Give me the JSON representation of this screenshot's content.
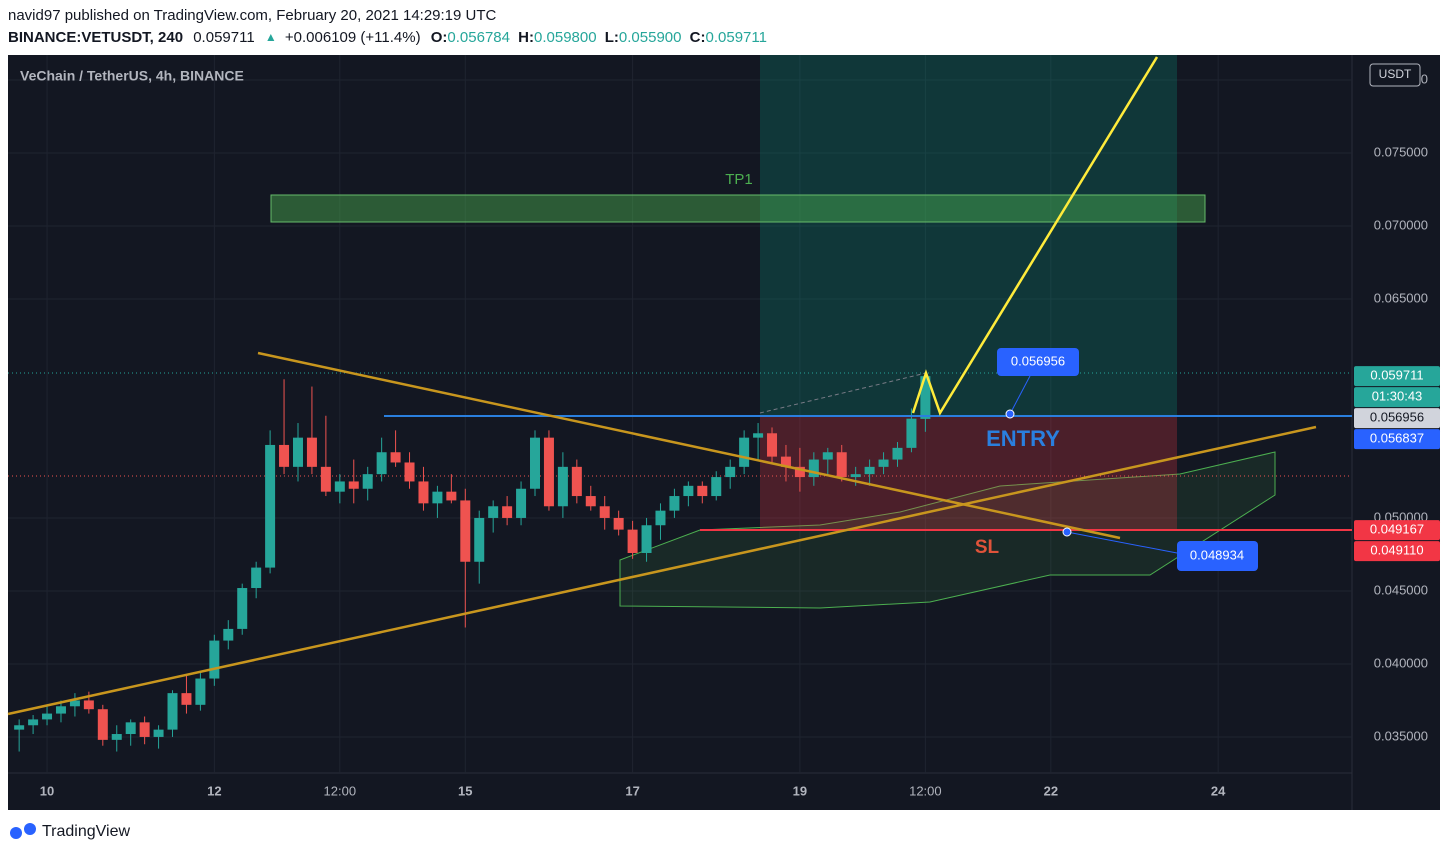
{
  "header": {
    "publisher": "navid97 published on TradingView.com, February 20, 2021 14:29:19 UTC",
    "symbol": "BINANCE:VETUSDT, 240",
    "last": "0.059711",
    "arrow": "▲",
    "change": "+0.006109 (+11.4%)",
    "o_label": "O:",
    "o": "0.056784",
    "h_label": "H:",
    "h": "0.059800",
    "l_label": "L:",
    "l": "0.055900",
    "c_label": "C:",
    "c": "0.059711"
  },
  "chart_data": {
    "type": "candlestick",
    "title": "VeChain / TetherUS, 4h, BINANCE",
    "currency": "USDT",
    "up_color": "#26a69a",
    "down_color": "#ef5350",
    "open": [
      0.0355,
      0.0358,
      0.0362,
      0.0366,
      0.0371,
      0.0375,
      0.0369,
      0.0348,
      0.0352,
      0.036,
      0.035,
      0.0355,
      0.038,
      0.0372,
      0.039,
      0.0416,
      0.0424,
      0.0452,
      0.0466,
      0.055,
      0.0535,
      0.0555,
      0.0535,
      0.0518,
      0.0525,
      0.052,
      0.053,
      0.0545,
      0.0538,
      0.0525,
      0.051,
      0.0518,
      0.0512,
      0.047,
      0.05,
      0.0508,
      0.05,
      0.052,
      0.0555,
      0.0508,
      0.0535,
      0.0515,
      0.0508,
      0.05,
      0.0492,
      0.0476,
      0.0495,
      0.0505,
      0.0515,
      0.0522,
      0.0515,
      0.0528,
      0.0535,
      0.0555,
      0.0558,
      0.0542,
      0.0535,
      0.0528,
      0.054,
      0.0545,
      0.0528,
      0.053,
      0.0535,
      0.054,
      0.0548,
      0.056784
    ],
    "high": [
      0.0362,
      0.0365,
      0.0372,
      0.0375,
      0.038,
      0.0381,
      0.0372,
      0.0358,
      0.0362,
      0.0364,
      0.0358,
      0.0382,
      0.0392,
      0.0395,
      0.042,
      0.043,
      0.0455,
      0.047,
      0.056,
      0.0595,
      0.0565,
      0.059,
      0.057,
      0.053,
      0.054,
      0.0535,
      0.0555,
      0.056,
      0.0545,
      0.0535,
      0.0522,
      0.053,
      0.052,
      0.0505,
      0.0512,
      0.0515,
      0.0525,
      0.056,
      0.056,
      0.0545,
      0.054,
      0.0522,
      0.0515,
      0.0505,
      0.0498,
      0.05,
      0.051,
      0.052,
      0.0525,
      0.0525,
      0.0532,
      0.054,
      0.056,
      0.0565,
      0.0562,
      0.055,
      0.0548,
      0.0545,
      0.0548,
      0.055,
      0.0535,
      0.054,
      0.0545,
      0.0552,
      0.0575,
      0.0598
    ],
    "low": [
      0.034,
      0.0352,
      0.0358,
      0.036,
      0.0364,
      0.0366,
      0.0344,
      0.034,
      0.0344,
      0.0345,
      0.0342,
      0.035,
      0.0366,
      0.0368,
      0.0385,
      0.041,
      0.042,
      0.0445,
      0.0462,
      0.053,
      0.0525,
      0.053,
      0.0515,
      0.051,
      0.051,
      0.0512,
      0.0525,
      0.0535,
      0.052,
      0.0505,
      0.05,
      0.051,
      0.0425,
      0.0455,
      0.049,
      0.0495,
      0.0495,
      0.0515,
      0.0505,
      0.05,
      0.051,
      0.0505,
      0.0492,
      0.0488,
      0.0472,
      0.047,
      0.0485,
      0.05,
      0.0508,
      0.051,
      0.0512,
      0.052,
      0.053,
      0.054,
      0.0538,
      0.0525,
      0.0518,
      0.0522,
      0.053,
      0.0525,
      0.0522,
      0.0522,
      0.053,
      0.0535,
      0.0545,
      0.0559
    ],
    "close": [
      0.0358,
      0.0362,
      0.0366,
      0.0371,
      0.0375,
      0.0369,
      0.0348,
      0.0352,
      0.036,
      0.035,
      0.0355,
      0.038,
      0.0372,
      0.039,
      0.0416,
      0.0424,
      0.0452,
      0.0466,
      0.055,
      0.0535,
      0.0555,
      0.0535,
      0.0518,
      0.0525,
      0.052,
      0.053,
      0.0545,
      0.0538,
      0.0525,
      0.051,
      0.0518,
      0.0512,
      0.047,
      0.05,
      0.0508,
      0.05,
      0.052,
      0.0555,
      0.0508,
      0.0535,
      0.0515,
      0.0508,
      0.05,
      0.0492,
      0.0476,
      0.0495,
      0.0505,
      0.0515,
      0.0522,
      0.0515,
      0.0528,
      0.0535,
      0.0555,
      0.0558,
      0.0542,
      0.0535,
      0.0528,
      0.054,
      0.0545,
      0.0528,
      0.053,
      0.0535,
      0.054,
      0.0548,
      0.0568,
      0.059711
    ],
    "xlim": [
      -0.8,
      95.6
    ],
    "xticks": [
      {
        "value": 2,
        "label": "10"
      },
      {
        "value": 14,
        "label": "12"
      },
      {
        "value": 23,
        "label": "12:00"
      },
      {
        "value": 32,
        "label": "15"
      },
      {
        "value": 44,
        "label": "17"
      },
      {
        "value": 56,
        "label": "19"
      },
      {
        "value": 65,
        "label": "12:00"
      },
      {
        "value": 74,
        "label": "22"
      },
      {
        "value": 86,
        "label": "24"
      }
    ],
    "ylim": [
      0.03253,
      0.08171
    ],
    "yticks": [
      {
        "value": 0.035,
        "label": "0.035000"
      },
      {
        "value": 0.04,
        "label": "0.040000"
      },
      {
        "value": 0.045,
        "label": "0.045000"
      },
      {
        "value": 0.05,
        "label": "0.050000"
      },
      {
        "value": 0.065,
        "label": "0.065000"
      },
      {
        "value": 0.07,
        "label": "0.070000"
      },
      {
        "value": 0.075,
        "label": "0.075000"
      },
      {
        "value": 0.08,
        "label": "0.080000"
      }
    ],
    "grid": true,
    "price_tags": [
      {
        "value": 0.059711,
        "color": "#26a69a"
      },
      {
        "value": 0.056956,
        "color": "#d1d4dc"
      },
      {
        "value": 0.056837,
        "color": "#2962ff"
      },
      {
        "value": 0.049167,
        "color": "#f23645"
      },
      {
        "value": 0.04911,
        "label": "0.049110",
        "color": "#f23645"
      }
    ],
    "countdown": "01:30:43",
    "annotations": {
      "tp": "TP1",
      "entry": "ENTRY",
      "sl": "SL",
      "entry_price": 0.056956,
      "stop_price": 0.048934
    }
  },
  "brand": "TradingView"
}
